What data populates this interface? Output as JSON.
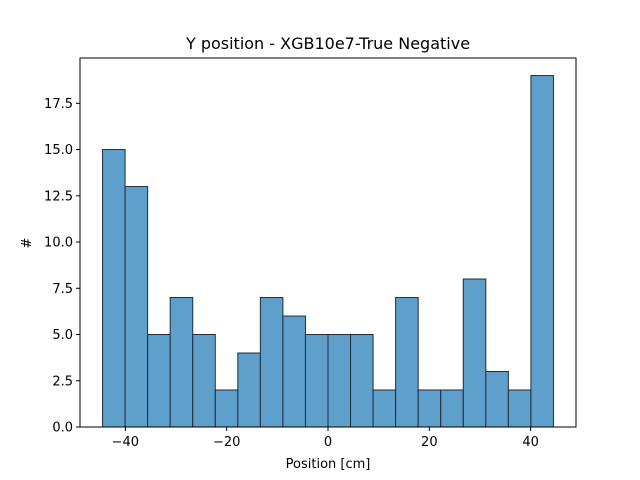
{
  "chart_data": {
    "type": "bar",
    "title": "Y position - XGB10e7-True Negative",
    "xlabel": "Position [cm]",
    "ylabel": "#",
    "bins": [
      {
        "x0": -44.5,
        "x1": -40.05,
        "value": 15
      },
      {
        "x0": -40.05,
        "x1": -35.6,
        "value": 13
      },
      {
        "x0": -35.6,
        "x1": -31.15,
        "value": 5
      },
      {
        "x0": -31.15,
        "x1": -26.7,
        "value": 7
      },
      {
        "x0": -26.7,
        "x1": -22.25,
        "value": 5
      },
      {
        "x0": -22.25,
        "x1": -17.8,
        "value": 2
      },
      {
        "x0": -17.8,
        "x1": -13.35,
        "value": 4
      },
      {
        "x0": -13.35,
        "x1": -8.9,
        "value": 7
      },
      {
        "x0": -8.9,
        "x1": -4.45,
        "value": 6
      },
      {
        "x0": -4.45,
        "x1": 0.0,
        "value": 5
      },
      {
        "x0": 0.0,
        "x1": 4.45,
        "value": 5
      },
      {
        "x0": 4.45,
        "x1": 8.9,
        "value": 5
      },
      {
        "x0": 8.9,
        "x1": 13.35,
        "value": 2
      },
      {
        "x0": 13.35,
        "x1": 17.8,
        "value": 7
      },
      {
        "x0": 17.8,
        "x1": 22.25,
        "value": 2
      },
      {
        "x0": 22.25,
        "x1": 26.7,
        "value": 2
      },
      {
        "x0": 26.7,
        "x1": 31.15,
        "value": 8
      },
      {
        "x0": 31.15,
        "x1": 35.6,
        "value": 3
      },
      {
        "x0": 35.6,
        "x1": 40.05,
        "value": 2
      },
      {
        "x0": 40.05,
        "x1": 44.5,
        "value": 19
      }
    ],
    "xlim": [
      -48.95,
      48.95
    ],
    "ylim": [
      0,
      19.95
    ],
    "xticks": [
      -40,
      -20,
      0,
      20,
      40
    ],
    "xtick_labels": [
      "−40",
      "−20",
      "0",
      "20",
      "40"
    ],
    "yticks": [
      0,
      2.5,
      5,
      7.5,
      10,
      12.5,
      15,
      17.5
    ],
    "ytick_labels": [
      "0.0",
      "2.5",
      "5.0",
      "7.5",
      "10.0",
      "12.5",
      "15.0",
      "17.5"
    ],
    "grid": false,
    "colors": {
      "bar_fill": "#5f9fcc",
      "bar_edge": "#1f2d3a",
      "axis": "#000000"
    }
  }
}
